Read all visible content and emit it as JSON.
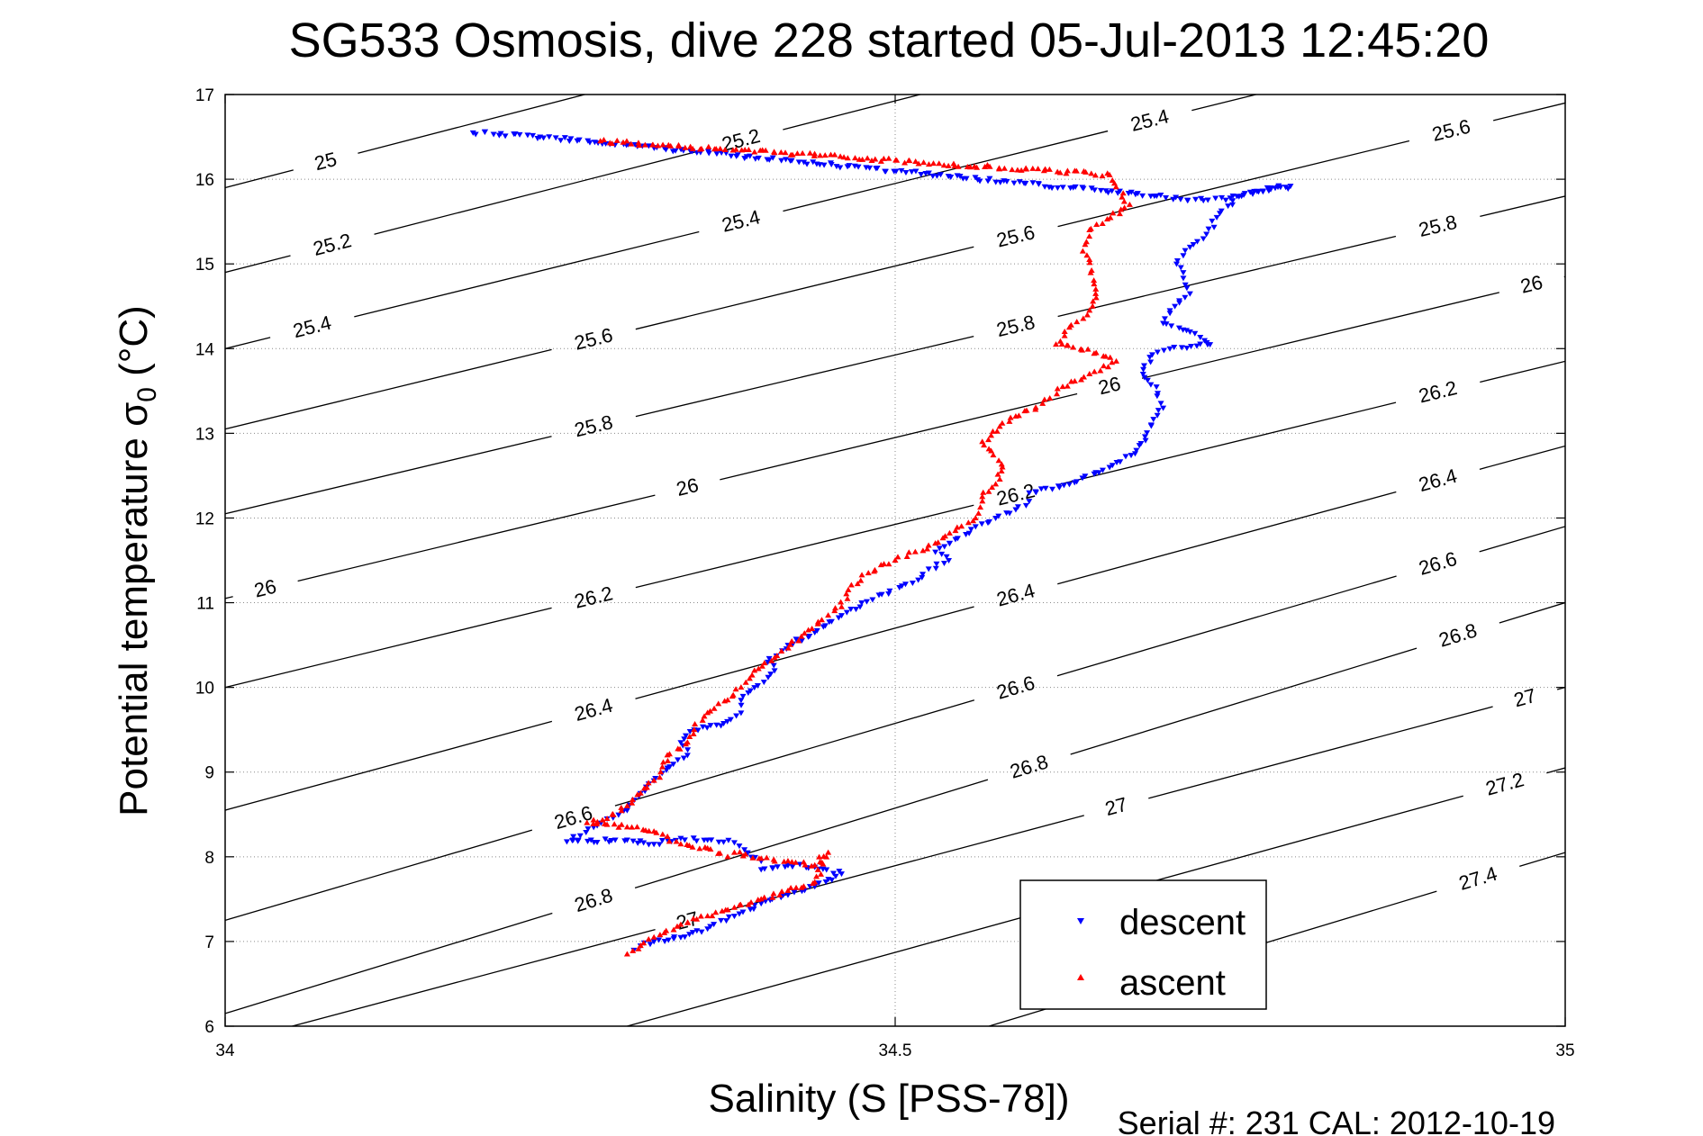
{
  "chart_data": {
    "type": "scatter",
    "title": "SG533 Osmosis, dive 228 started 05-Jul-2013 12:45:20",
    "xlabel": "Salinity (S [PSS-78])",
    "ylabel_main": "Potential temperature ",
    "ylabel_sigma": "σ",
    "ylabel_sub": "0",
    "ylabel_unit": " (°C)",
    "xlim": [
      34,
      35
    ],
    "ylim": [
      6,
      17
    ],
    "x_ticks": [
      "34",
      "34.5",
      "35"
    ],
    "y_ticks": [
      "6",
      "7",
      "8",
      "9",
      "10",
      "11",
      "12",
      "13",
      "14",
      "15",
      "16",
      "17"
    ],
    "grid": "dotted",
    "legend_position": "bottom-center",
    "footer": "Serial #: 231  CAL: 2012-10-19",
    "contours": [
      {
        "sigma": 25.0,
        "points": [
          [
            34.0,
            15.9
          ],
          [
            35.0,
            20.0
          ]
        ],
        "labels": [
          [
            34.075,
            16.08
          ]
        ]
      },
      {
        "sigma": 25.2,
        "points": [
          [
            34.0,
            14.9
          ],
          [
            35.0,
            18.95
          ]
        ],
        "labels": [
          [
            34.08,
            15.18
          ],
          [
            34.385,
            16.3
          ]
        ]
      },
      {
        "sigma": 25.4,
        "points": [
          [
            34.0,
            14.0
          ],
          [
            35.0,
            17.9
          ]
        ],
        "labels": [
          [
            34.065,
            14.22
          ],
          [
            34.385,
            15.36
          ],
          [
            34.69,
            16.48
          ]
        ]
      },
      {
        "sigma": 25.6,
        "points": [
          [
            34.0,
            13.05
          ],
          [
            35.0,
            16.9
          ]
        ],
        "labels": [
          [
            34.275,
            14.07
          ],
          [
            34.59,
            15.2
          ],
          [
            34.915,
            16.3
          ]
        ]
      },
      {
        "sigma": 25.8,
        "points": [
          [
            34.0,
            12.05
          ],
          [
            35.0,
            15.8
          ]
        ],
        "labels": [
          [
            34.275,
            13.08
          ],
          [
            34.59,
            14.25
          ],
          [
            34.905,
            15.42
          ]
        ]
      },
      {
        "sigma": 26.0,
        "points": [
          [
            34.0,
            11.05
          ],
          [
            35.0,
            14.85
          ]
        ],
        "labels": [
          [
            34.03,
            11.1
          ],
          [
            34.345,
            12.38
          ],
          [
            34.66,
            13.62
          ],
          [
            34.975,
            14.9
          ]
        ]
      },
      {
        "sigma": 26.2,
        "points": [
          [
            34.0,
            10.0
          ],
          [
            35.0,
            13.85
          ]
        ],
        "labels": [
          [
            34.275,
            10.99
          ],
          [
            34.59,
            12.25
          ],
          [
            34.905,
            13.5
          ]
        ]
      },
      {
        "sigma": 26.4,
        "points": [
          [
            34.0,
            8.55
          ],
          [
            35.0,
            12.85
          ]
        ],
        "labels": [
          [
            34.275,
            9.9
          ],
          [
            34.59,
            11.2
          ],
          [
            34.905,
            12.5
          ]
        ]
      },
      {
        "sigma": 26.6,
        "points": [
          [
            34.0,
            7.25
          ],
          [
            35.0,
            11.9
          ]
        ],
        "labels": [
          [
            34.26,
            8.63
          ],
          [
            34.59,
            10.12
          ],
          [
            34.905,
            11.45
          ]
        ]
      },
      {
        "sigma": 26.8,
        "points": [
          [
            34.0,
            6.15
          ],
          [
            35.0,
            11.0
          ]
        ],
        "labels": [
          [
            34.275,
            7.3
          ],
          [
            34.6,
            9.03
          ],
          [
            34.92,
            10.43
          ]
        ]
      },
      {
        "sigma": 27.0,
        "points": [
          [
            34.05,
            6.0
          ],
          [
            35.0,
            10.0
          ]
        ],
        "labels": [
          [
            34.345,
            6.26
          ],
          [
            34.665,
            8.0
          ],
          [
            34.97,
            9.38
          ]
        ]
      },
      {
        "sigma": 27.2,
        "points": [
          [
            34.3,
            6.0
          ],
          [
            35.0,
            9.05
          ]
        ],
        "labels": [
          [
            34.955,
            8.24
          ]
        ]
      },
      {
        "sigma": 27.4,
        "points": [
          [
            34.57,
            6.0
          ],
          [
            35.0,
            8.05
          ]
        ],
        "labels": [
          [
            34.935,
            7.15
          ]
        ]
      }
    ],
    "series": [
      {
        "name": "descent",
        "color": "#0000ff",
        "marker": "down-triangle",
        "x": [
          34.185,
          34.235,
          34.73,
          34.75,
          34.765,
          34.78,
          34.795,
          34.755,
          34.74,
          34.73,
          34.72,
          34.715,
          34.71,
          34.715,
          34.72,
          34.705,
          34.7,
          34.72,
          34.735,
          34.705,
          34.69,
          34.685,
          34.695,
          34.7,
          34.68,
          34.66,
          34.63,
          34.6,
          34.6,
          34.59,
          34.575,
          34.56,
          34.545,
          34.53,
          34.54,
          34.525,
          34.52,
          34.505,
          34.49,
          34.475,
          34.46,
          34.44,
          34.42,
          34.405,
          34.41,
          34.395,
          34.385,
          34.385,
          34.37,
          34.35,
          34.34,
          34.345,
          34.33,
          34.32,
          34.31,
          34.3,
          34.285,
          34.275,
          34.265,
          34.255,
          34.3,
          34.32,
          34.34,
          34.36,
          34.38,
          34.39,
          34.4,
          34.4,
          34.42,
          34.44,
          34.46,
          34.44,
          34.42,
          34.4,
          34.38,
          34.37,
          34.36,
          34.34,
          34.32,
          34.31,
          34.305
        ],
        "y": [
          16.55,
          16.5,
          15.75,
          15.78,
          15.85,
          15.9,
          15.92,
          15.8,
          15.55,
          15.3,
          15.2,
          15.1,
          15.0,
          14.9,
          14.65,
          14.45,
          14.3,
          14.2,
          14.05,
          14.0,
          13.9,
          13.7,
          13.55,
          13.3,
          12.8,
          12.6,
          12.4,
          12.3,
          12.2,
          12.1,
          12.0,
          11.9,
          11.75,
          11.6,
          11.5,
          11.4,
          11.3,
          11.2,
          11.1,
          11.0,
          10.85,
          10.65,
          10.5,
          10.3,
          10.2,
          10.0,
          9.85,
          9.7,
          9.55,
          9.5,
          9.35,
          9.2,
          9.05,
          8.9,
          8.75,
          8.55,
          8.45,
          8.35,
          8.25,
          8.18,
          8.2,
          8.15,
          8.22,
          8.2,
          8.17,
          8.05,
          7.95,
          7.85,
          7.9,
          7.88,
          7.8,
          7.65,
          7.55,
          7.45,
          7.3,
          7.25,
          7.15,
          7.05,
          7.0,
          6.95,
          6.9
        ]
      },
      {
        "name": "ascent",
        "color": "#ff0000",
        "marker": "up-triangle",
        "x": [
          34.28,
          34.66,
          34.675,
          34.645,
          34.64,
          34.645,
          34.65,
          34.645,
          34.63,
          34.62,
          34.65,
          34.665,
          34.645,
          34.625,
          34.61,
          34.59,
          34.565,
          34.58,
          34.575,
          34.565,
          34.56,
          34.545,
          34.53,
          34.515,
          34.5,
          34.48,
          34.465,
          34.46,
          34.45,
          34.43,
          34.41,
          34.395,
          34.385,
          34.375,
          34.36,
          34.35,
          34.345,
          34.33,
          34.325,
          34.32,
          34.31,
          34.3,
          34.285,
          34.27,
          34.285,
          34.3,
          34.32,
          34.34,
          34.36,
          34.375,
          34.38,
          34.4,
          34.42,
          34.44,
          34.45,
          34.44,
          34.42,
          34.4,
          34.38,
          34.36,
          34.34,
          34.32,
          34.31,
          34.3
        ],
        "y": [
          16.45,
          16.05,
          15.7,
          15.4,
          15.15,
          15.05,
          14.6,
          14.45,
          14.25,
          14.05,
          13.95,
          13.85,
          13.7,
          13.55,
          13.35,
          13.2,
          12.9,
          12.6,
          12.4,
          12.25,
          12.0,
          11.85,
          11.7,
          11.6,
          11.5,
          11.35,
          11.15,
          10.95,
          10.85,
          10.6,
          10.35,
          10.2,
          10.0,
          9.85,
          9.7,
          9.5,
          9.35,
          9.2,
          9.0,
          8.9,
          8.75,
          8.6,
          8.45,
          8.4,
          8.38,
          8.35,
          8.3,
          8.15,
          8.1,
          8.0,
          8.05,
          7.98,
          7.95,
          7.9,
          8.05,
          7.7,
          7.6,
          7.5,
          7.4,
          7.3,
          7.2,
          7.05,
          6.95,
          6.85
        ]
      }
    ]
  }
}
